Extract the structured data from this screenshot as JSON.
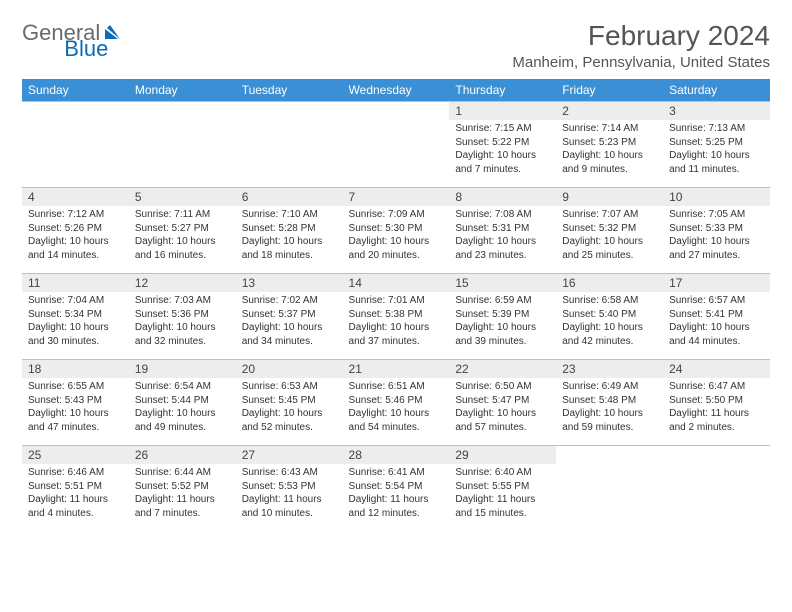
{
  "brand": {
    "part1": "General",
    "part2": "Blue"
  },
  "title": "February 2024",
  "location": "Manheim, Pennsylvania, United States",
  "colors": {
    "header_bg": "#3b8fd4",
    "header_text": "#ffffff",
    "daynum_bg": "#ededed",
    "border": "#bfbfbf",
    "text": "#333333",
    "brand_gray": "#6b6b6b",
    "brand_blue": "#0b6db7"
  },
  "font": {
    "title_size": 28,
    "location_size": 15,
    "dayhead_size": 12,
    "daynum_size": 12,
    "body_size": 10
  },
  "day_headers": [
    "Sunday",
    "Monday",
    "Tuesday",
    "Wednesday",
    "Thursday",
    "Friday",
    "Saturday"
  ],
  "weeks": [
    [
      {
        "n": "",
        "sunrise": "",
        "sunset": "",
        "daylight": ""
      },
      {
        "n": "",
        "sunrise": "",
        "sunset": "",
        "daylight": ""
      },
      {
        "n": "",
        "sunrise": "",
        "sunset": "",
        "daylight": ""
      },
      {
        "n": "",
        "sunrise": "",
        "sunset": "",
        "daylight": ""
      },
      {
        "n": "1",
        "sunrise": "Sunrise: 7:15 AM",
        "sunset": "Sunset: 5:22 PM",
        "daylight": "Daylight: 10 hours and 7 minutes."
      },
      {
        "n": "2",
        "sunrise": "Sunrise: 7:14 AM",
        "sunset": "Sunset: 5:23 PM",
        "daylight": "Daylight: 10 hours and 9 minutes."
      },
      {
        "n": "3",
        "sunrise": "Sunrise: 7:13 AM",
        "sunset": "Sunset: 5:25 PM",
        "daylight": "Daylight: 10 hours and 11 minutes."
      }
    ],
    [
      {
        "n": "4",
        "sunrise": "Sunrise: 7:12 AM",
        "sunset": "Sunset: 5:26 PM",
        "daylight": "Daylight: 10 hours and 14 minutes."
      },
      {
        "n": "5",
        "sunrise": "Sunrise: 7:11 AM",
        "sunset": "Sunset: 5:27 PM",
        "daylight": "Daylight: 10 hours and 16 minutes."
      },
      {
        "n": "6",
        "sunrise": "Sunrise: 7:10 AM",
        "sunset": "Sunset: 5:28 PM",
        "daylight": "Daylight: 10 hours and 18 minutes."
      },
      {
        "n": "7",
        "sunrise": "Sunrise: 7:09 AM",
        "sunset": "Sunset: 5:30 PM",
        "daylight": "Daylight: 10 hours and 20 minutes."
      },
      {
        "n": "8",
        "sunrise": "Sunrise: 7:08 AM",
        "sunset": "Sunset: 5:31 PM",
        "daylight": "Daylight: 10 hours and 23 minutes."
      },
      {
        "n": "9",
        "sunrise": "Sunrise: 7:07 AM",
        "sunset": "Sunset: 5:32 PM",
        "daylight": "Daylight: 10 hours and 25 minutes."
      },
      {
        "n": "10",
        "sunrise": "Sunrise: 7:05 AM",
        "sunset": "Sunset: 5:33 PM",
        "daylight": "Daylight: 10 hours and 27 minutes."
      }
    ],
    [
      {
        "n": "11",
        "sunrise": "Sunrise: 7:04 AM",
        "sunset": "Sunset: 5:34 PM",
        "daylight": "Daylight: 10 hours and 30 minutes."
      },
      {
        "n": "12",
        "sunrise": "Sunrise: 7:03 AM",
        "sunset": "Sunset: 5:36 PM",
        "daylight": "Daylight: 10 hours and 32 minutes."
      },
      {
        "n": "13",
        "sunrise": "Sunrise: 7:02 AM",
        "sunset": "Sunset: 5:37 PM",
        "daylight": "Daylight: 10 hours and 34 minutes."
      },
      {
        "n": "14",
        "sunrise": "Sunrise: 7:01 AM",
        "sunset": "Sunset: 5:38 PM",
        "daylight": "Daylight: 10 hours and 37 minutes."
      },
      {
        "n": "15",
        "sunrise": "Sunrise: 6:59 AM",
        "sunset": "Sunset: 5:39 PM",
        "daylight": "Daylight: 10 hours and 39 minutes."
      },
      {
        "n": "16",
        "sunrise": "Sunrise: 6:58 AM",
        "sunset": "Sunset: 5:40 PM",
        "daylight": "Daylight: 10 hours and 42 minutes."
      },
      {
        "n": "17",
        "sunrise": "Sunrise: 6:57 AM",
        "sunset": "Sunset: 5:41 PM",
        "daylight": "Daylight: 10 hours and 44 minutes."
      }
    ],
    [
      {
        "n": "18",
        "sunrise": "Sunrise: 6:55 AM",
        "sunset": "Sunset: 5:43 PM",
        "daylight": "Daylight: 10 hours and 47 minutes."
      },
      {
        "n": "19",
        "sunrise": "Sunrise: 6:54 AM",
        "sunset": "Sunset: 5:44 PM",
        "daylight": "Daylight: 10 hours and 49 minutes."
      },
      {
        "n": "20",
        "sunrise": "Sunrise: 6:53 AM",
        "sunset": "Sunset: 5:45 PM",
        "daylight": "Daylight: 10 hours and 52 minutes."
      },
      {
        "n": "21",
        "sunrise": "Sunrise: 6:51 AM",
        "sunset": "Sunset: 5:46 PM",
        "daylight": "Daylight: 10 hours and 54 minutes."
      },
      {
        "n": "22",
        "sunrise": "Sunrise: 6:50 AM",
        "sunset": "Sunset: 5:47 PM",
        "daylight": "Daylight: 10 hours and 57 minutes."
      },
      {
        "n": "23",
        "sunrise": "Sunrise: 6:49 AM",
        "sunset": "Sunset: 5:48 PM",
        "daylight": "Daylight: 10 hours and 59 minutes."
      },
      {
        "n": "24",
        "sunrise": "Sunrise: 6:47 AM",
        "sunset": "Sunset: 5:50 PM",
        "daylight": "Daylight: 11 hours and 2 minutes."
      }
    ],
    [
      {
        "n": "25",
        "sunrise": "Sunrise: 6:46 AM",
        "sunset": "Sunset: 5:51 PM",
        "daylight": "Daylight: 11 hours and 4 minutes."
      },
      {
        "n": "26",
        "sunrise": "Sunrise: 6:44 AM",
        "sunset": "Sunset: 5:52 PM",
        "daylight": "Daylight: 11 hours and 7 minutes."
      },
      {
        "n": "27",
        "sunrise": "Sunrise: 6:43 AM",
        "sunset": "Sunset: 5:53 PM",
        "daylight": "Daylight: 11 hours and 10 minutes."
      },
      {
        "n": "28",
        "sunrise": "Sunrise: 6:41 AM",
        "sunset": "Sunset: 5:54 PM",
        "daylight": "Daylight: 11 hours and 12 minutes."
      },
      {
        "n": "29",
        "sunrise": "Sunrise: 6:40 AM",
        "sunset": "Sunset: 5:55 PM",
        "daylight": "Daylight: 11 hours and 15 minutes."
      },
      {
        "n": "",
        "sunrise": "",
        "sunset": "",
        "daylight": ""
      },
      {
        "n": "",
        "sunrise": "",
        "sunset": "",
        "daylight": ""
      }
    ]
  ]
}
